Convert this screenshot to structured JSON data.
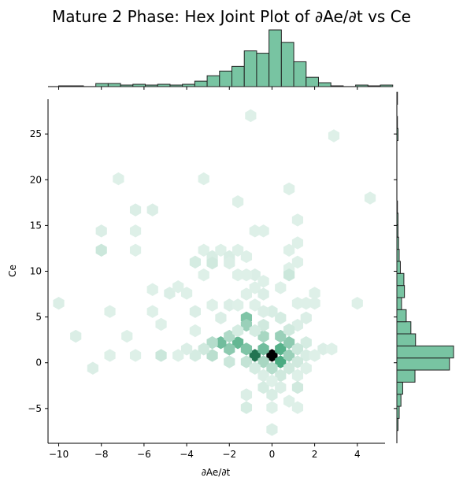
{
  "chart_data": {
    "type": "hexbin",
    "title": "Mature 2 Phase: Hex Joint Plot of ∂Ae/∂t vs Ce",
    "xlabel": "∂Ae/∂t",
    "ylabel": "Ce",
    "xlim": [
      -10.5,
      5.3
    ],
    "ylim": [
      -8.8,
      28.8
    ],
    "xticks": [
      -10,
      -8,
      -6,
      -4,
      -2,
      0,
      2,
      4
    ],
    "yticks": [
      -5,
      0,
      5,
      10,
      15,
      20,
      25
    ],
    "color": "#2e9e6e",
    "marginal_color": "#78c4a2",
    "hexbin_cells": [
      {
        "x": 0.0,
        "y": 0.8,
        "v": 1.0
      },
      {
        "x": -0.8,
        "y": 0.8,
        "v": 0.78
      },
      {
        "x": 0.4,
        "y": 0.1,
        "v": 0.6
      },
      {
        "x": 0.4,
        "y": 1.5,
        "v": 0.55
      },
      {
        "x": -0.4,
        "y": 1.5,
        "v": 0.45
      },
      {
        "x": -1.6,
        "y": 2.2,
        "v": 0.5
      },
      {
        "x": -2.0,
        "y": 1.5,
        "v": 0.35
      },
      {
        "x": -1.2,
        "y": 1.5,
        "v": 0.4
      },
      {
        "x": -2.4,
        "y": 2.2,
        "v": 0.45
      },
      {
        "x": -1.2,
        "y": 4.9,
        "v": 0.4
      },
      {
        "x": -1.2,
        "y": 4.1,
        "v": 0.3
      },
      {
        "x": 0.8,
        "y": 2.2,
        "v": 0.35
      },
      {
        "x": 0.4,
        "y": 2.9,
        "v": 0.3
      },
      {
        "x": -0.4,
        "y": 2.9,
        "v": 0.25
      },
      {
        "x": 0.8,
        "y": 0.8,
        "v": 0.3
      },
      {
        "x": -0.4,
        "y": 0.1,
        "v": 0.25
      },
      {
        "x": -1.2,
        "y": 0.1,
        "v": 0.15
      },
      {
        "x": -2.0,
        "y": 0.1,
        "v": 0.12
      },
      {
        "x": -2.8,
        "y": 0.8,
        "v": 0.18
      },
      {
        "x": -2.0,
        "y": 2.9,
        "v": 0.22
      },
      {
        "x": -2.8,
        "y": 2.2,
        "v": 0.2
      },
      {
        "x": -3.2,
        "y": 1.5,
        "v": 0.1
      },
      {
        "x": -3.6,
        "y": 0.8,
        "v": 0.08
      },
      {
        "x": -4.0,
        "y": 1.5,
        "v": 0.06
      },
      {
        "x": -4.4,
        "y": 0.8,
        "v": 0.05
      },
      {
        "x": -5.2,
        "y": 0.8,
        "v": 0.12
      },
      {
        "x": -6.4,
        "y": 0.8,
        "v": 0.05
      },
      {
        "x": -7.6,
        "y": 0.8,
        "v": 0.05
      },
      {
        "x": -8.4,
        "y": -0.6,
        "v": 0.06
      },
      {
        "x": -9.2,
        "y": 2.9,
        "v": 0.06
      },
      {
        "x": -10.0,
        "y": 6.5,
        "v": 0.06
      },
      {
        "x": -7.6,
        "y": 5.6,
        "v": 0.05
      },
      {
        "x": -6.8,
        "y": 2.9,
        "v": 0.05
      },
      {
        "x": -5.6,
        "y": 5.6,
        "v": 0.05
      },
      {
        "x": -5.2,
        "y": 4.2,
        "v": 0.05
      },
      {
        "x": -5.6,
        "y": 8.0,
        "v": 0.05
      },
      {
        "x": -4.8,
        "y": 7.6,
        "v": 0.06
      },
      {
        "x": -4.4,
        "y": 8.3,
        "v": 0.05
      },
      {
        "x": -4.0,
        "y": 7.6,
        "v": 0.05
      },
      {
        "x": -3.6,
        "y": 5.6,
        "v": 0.06
      },
      {
        "x": -3.2,
        "y": 12.3,
        "v": 0.05
      },
      {
        "x": -2.8,
        "y": 11.6,
        "v": 0.07
      },
      {
        "x": -2.4,
        "y": 12.3,
        "v": 0.05
      },
      {
        "x": -2.0,
        "y": 11.6,
        "v": 0.07
      },
      {
        "x": -2.8,
        "y": 10.9,
        "v": 0.1
      },
      {
        "x": -2.0,
        "y": 10.9,
        "v": 0.06
      },
      {
        "x": -1.6,
        "y": 12.3,
        "v": 0.05
      },
      {
        "x": -1.2,
        "y": 11.6,
        "v": 0.05
      },
      {
        "x": -3.6,
        "y": 11.0,
        "v": 0.08
      },
      {
        "x": -3.2,
        "y": 9.6,
        "v": 0.05
      },
      {
        "x": -1.6,
        "y": 9.6,
        "v": 0.05
      },
      {
        "x": -0.8,
        "y": 9.6,
        "v": 0.06
      },
      {
        "x": -0.4,
        "y": 8.9,
        "v": 0.05
      },
      {
        "x": -0.8,
        "y": 8.2,
        "v": 0.05
      },
      {
        "x": -1.2,
        "y": 7.5,
        "v": 0.05
      },
      {
        "x": -0.4,
        "y": 7.5,
        "v": 0.06
      },
      {
        "x": 0.4,
        "y": 8.2,
        "v": 0.05
      },
      {
        "x": 0.8,
        "y": 10.3,
        "v": 0.05
      },
      {
        "x": 1.2,
        "y": 11.0,
        "v": 0.05
      },
      {
        "x": 0.8,
        "y": 12.3,
        "v": 0.05
      },
      {
        "x": 1.2,
        "y": 13.1,
        "v": 0.05
      },
      {
        "x": 1.2,
        "y": 15.6,
        "v": 0.05
      },
      {
        "x": 0.8,
        "y": 19.0,
        "v": 0.05
      },
      {
        "x": 0.8,
        "y": 9.6,
        "v": 0.12
      },
      {
        "x": -0.8,
        "y": 14.4,
        "v": 0.05
      },
      {
        "x": -0.4,
        "y": 14.4,
        "v": 0.05
      },
      {
        "x": -1.6,
        "y": 17.6,
        "v": 0.05
      },
      {
        "x": -1.2,
        "y": 9.6,
        "v": 0.05
      },
      {
        "x": -3.2,
        "y": 20.1,
        "v": 0.05
      },
      {
        "x": -7.2,
        "y": 20.1,
        "v": 0.05
      },
      {
        "x": -6.4,
        "y": 16.7,
        "v": 0.06
      },
      {
        "x": -5.6,
        "y": 16.7,
        "v": 0.06
      },
      {
        "x": -8.0,
        "y": 14.4,
        "v": 0.06
      },
      {
        "x": -6.4,
        "y": 14.4,
        "v": 0.05
      },
      {
        "x": -8.0,
        "y": 12.3,
        "v": 0.12
      },
      {
        "x": -6.4,
        "y": 12.3,
        "v": 0.05
      },
      {
        "x": -1.0,
        "y": 27.0,
        "v": 0.05
      },
      {
        "x": 2.9,
        "y": 24.8,
        "v": 0.05
      },
      {
        "x": 4.6,
        "y": 18.0,
        "v": 0.05
      },
      {
        "x": 4.0,
        "y": 6.5,
        "v": 0.05
      },
      {
        "x": 2.0,
        "y": 7.6,
        "v": 0.05
      },
      {
        "x": 1.6,
        "y": 6.5,
        "v": 0.05
      },
      {
        "x": 1.2,
        "y": 6.5,
        "v": 0.05
      },
      {
        "x": 2.0,
        "y": 6.5,
        "v": 0.05
      },
      {
        "x": 1.6,
        "y": 4.9,
        "v": 0.06
      },
      {
        "x": 1.2,
        "y": 4.1,
        "v": 0.06
      },
      {
        "x": 0.4,
        "y": 4.9,
        "v": 0.08
      },
      {
        "x": 0.0,
        "y": 5.6,
        "v": 0.07
      },
      {
        "x": -0.4,
        "y": 4.1,
        "v": 0.1
      },
      {
        "x": 0.8,
        "y": 3.6,
        "v": 0.1
      },
      {
        "x": -0.8,
        "y": 3.5,
        "v": 0.08
      },
      {
        "x": -1.6,
        "y": 3.5,
        "v": 0.08
      },
      {
        "x": -2.4,
        "y": 4.9,
        "v": 0.06
      },
      {
        "x": -2.8,
        "y": 6.3,
        "v": 0.05
      },
      {
        "x": -2.0,
        "y": 6.3,
        "v": 0.06
      },
      {
        "x": -1.6,
        "y": 6.3,
        "v": 0.05
      },
      {
        "x": -0.8,
        "y": 6.3,
        "v": 0.05
      },
      {
        "x": -0.4,
        "y": 5.6,
        "v": 0.06
      },
      {
        "x": -3.6,
        "y": 3.5,
        "v": 0.05
      },
      {
        "x": 1.6,
        "y": 2.2,
        "v": 0.08
      },
      {
        "x": 1.2,
        "y": 1.5,
        "v": 0.12
      },
      {
        "x": 2.4,
        "y": 1.5,
        "v": 0.06
      },
      {
        "x": 2.8,
        "y": 1.5,
        "v": 0.05
      },
      {
        "x": 1.6,
        "y": 0.8,
        "v": 0.07
      },
      {
        "x": 2.0,
        "y": 0.8,
        "v": 0.05
      },
      {
        "x": 1.2,
        "y": 0.1,
        "v": 0.1
      },
      {
        "x": 0.8,
        "y": -0.6,
        "v": 0.1
      },
      {
        "x": 0.0,
        "y": -0.6,
        "v": 0.2
      },
      {
        "x": -0.8,
        "y": -0.6,
        "v": 0.08
      },
      {
        "x": 0.4,
        "y": -1.4,
        "v": 0.1
      },
      {
        "x": 1.2,
        "y": -1.4,
        "v": 0.05
      },
      {
        "x": 1.6,
        "y": -0.6,
        "v": 0.05
      },
      {
        "x": -0.4,
        "y": -1.4,
        "v": 0.06
      },
      {
        "x": -0.4,
        "y": -2.7,
        "v": 0.08
      },
      {
        "x": 0.0,
        "y": -2.0,
        "v": 0.05
      },
      {
        "x": 0.4,
        "y": -2.7,
        "v": 0.06
      },
      {
        "x": 1.2,
        "y": -2.7,
        "v": 0.1
      },
      {
        "x": -1.2,
        "y": -3.5,
        "v": 0.06
      },
      {
        "x": 0.0,
        "y": -3.5,
        "v": 0.07
      },
      {
        "x": 0.8,
        "y": -4.2,
        "v": 0.05
      },
      {
        "x": -1.2,
        "y": -4.9,
        "v": 0.08
      },
      {
        "x": 0.0,
        "y": -4.9,
        "v": 0.05
      },
      {
        "x": 1.2,
        "y": -4.9,
        "v": 0.05
      },
      {
        "x": 0.0,
        "y": -7.3,
        "v": 0.06
      }
    ],
    "marginal_x": {
      "bin_start": -10.0,
      "bin_width": 0.58,
      "counts": [
        1,
        1,
        0,
        4,
        4,
        2,
        3,
        2,
        3,
        2,
        3,
        7,
        14,
        20,
        26,
        46,
        43,
        73,
        57,
        32,
        12,
        5,
        1,
        0,
        2,
        1,
        2
      ]
    },
    "marginal_y": {
      "bin_start": -7.4,
      "bin_width": 1.32,
      "counts": [
        2,
        4,
        7,
        10,
        31,
        90,
        97,
        32,
        24,
        16,
        8,
        13,
        12,
        6,
        4,
        3,
        2,
        2,
        1,
        0,
        0,
        0,
        0,
        0,
        2,
        1,
        0,
        1
      ]
    }
  }
}
